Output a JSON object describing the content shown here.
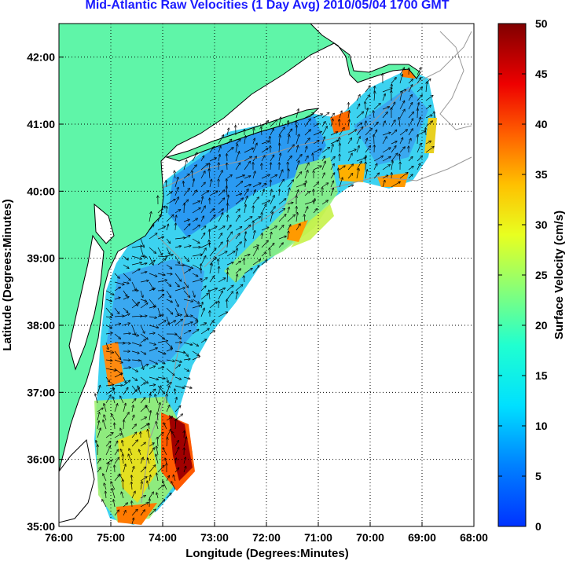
{
  "chart_data": {
    "type": "heatmap",
    "title": "Mid-Atlantic Raw Velocities (1 Day Avg) 2010/05/04 1700 GMT",
    "xlabel": "Longitude (Degrees:Minutes)",
    "ylabel": "Latitude (Degrees:Minutes)",
    "x_ticks": [
      "76:00",
      "75:00",
      "74:00",
      "73:00",
      "72:00",
      "71:00",
      "70:00",
      "69:00",
      "68:00"
    ],
    "y_ticks": [
      "35:00",
      "36:00",
      "37:00",
      "38:00",
      "39:00",
      "40:00",
      "41:00",
      "42:00"
    ],
    "xlim": [
      -76,
      -68
    ],
    "ylim": [
      35,
      42.5
    ],
    "grid": true,
    "colorbar": {
      "label": "Surface Velocity (cm/s)",
      "range": [
        0,
        50
      ],
      "ticks": [
        "0",
        "5",
        "10",
        "15",
        "20",
        "25",
        "30",
        "35",
        "40",
        "45",
        "50"
      ]
    },
    "colors": {
      "land": "#5ff5a8",
      "title": "#1a1aff",
      "grid": "#000000",
      "bathymetry": "#999999"
    }
  }
}
